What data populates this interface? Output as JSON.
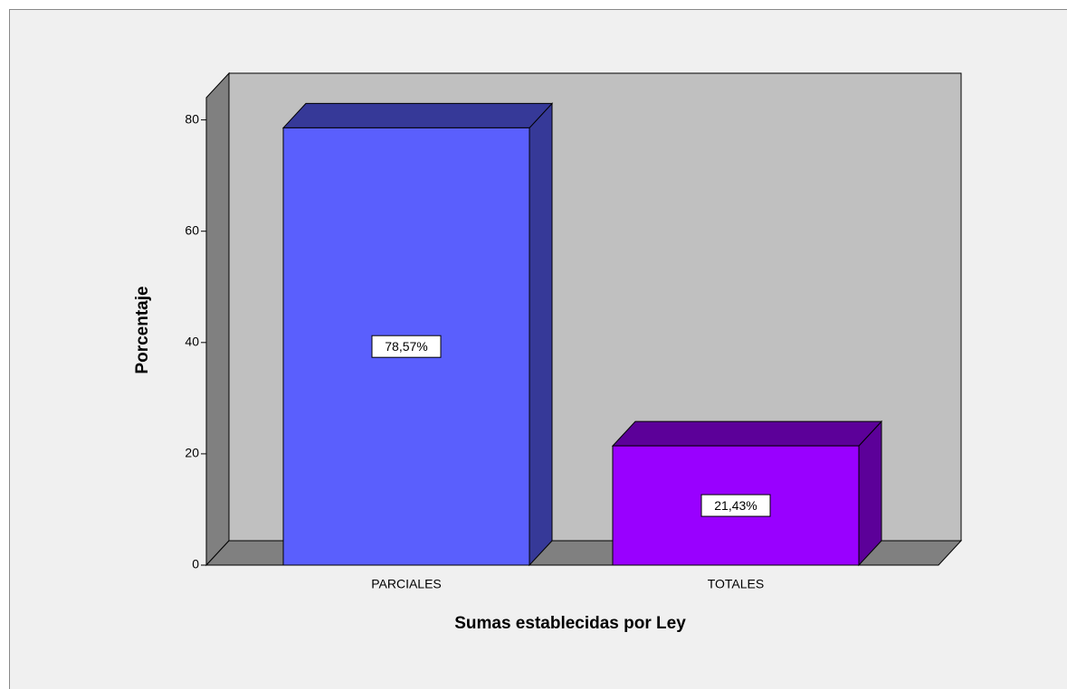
{
  "chart_data": {
    "type": "bar3d",
    "x_label": "Sumas establecidas por Ley",
    "y_label": "Porcentaje",
    "categories": [
      "PARCIALES",
      "TOTALES"
    ],
    "values": [
      78.57,
      21.43
    ],
    "value_labels": [
      "78,57%",
      "21,43%"
    ],
    "colors": [
      "#5a5ffd",
      "#9900ff"
    ],
    "ylim": [
      0,
      84
    ],
    "yticks": [
      0,
      20,
      40,
      60,
      80
    ]
  }
}
